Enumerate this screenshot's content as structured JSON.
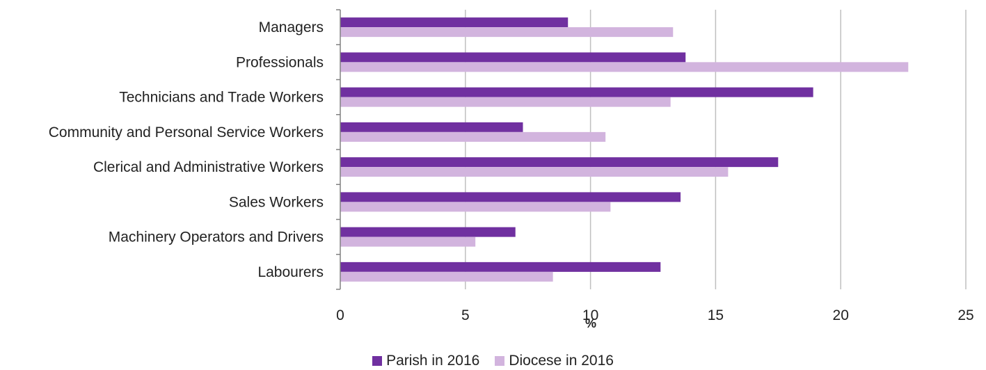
{
  "chart_data": {
    "type": "bar",
    "orientation": "horizontal",
    "categories": [
      "Managers",
      "Professionals",
      "Technicians and Trade Workers",
      "Community and Personal Service Workers",
      "Clerical and Administrative Workers",
      "Sales Workers",
      "Machinery Operators and Drivers",
      "Labourers"
    ],
    "series": [
      {
        "name": "Parish in 2016",
        "color": "#7030A0",
        "values": [
          9.1,
          13.8,
          18.9,
          7.3,
          17.5,
          13.6,
          7.0,
          12.8
        ]
      },
      {
        "name": "Diocese in 2016",
        "color": "#D2B4DE",
        "values": [
          13.3,
          22.7,
          13.2,
          10.6,
          15.5,
          10.8,
          5.4,
          8.5
        ]
      }
    ],
    "xlabel": "%",
    "xlim": [
      0,
      25
    ],
    "xticks": [
      "0",
      "5",
      "10",
      "15",
      "20",
      "25"
    ],
    "grid": "vertical",
    "legend_position": "bottom"
  }
}
